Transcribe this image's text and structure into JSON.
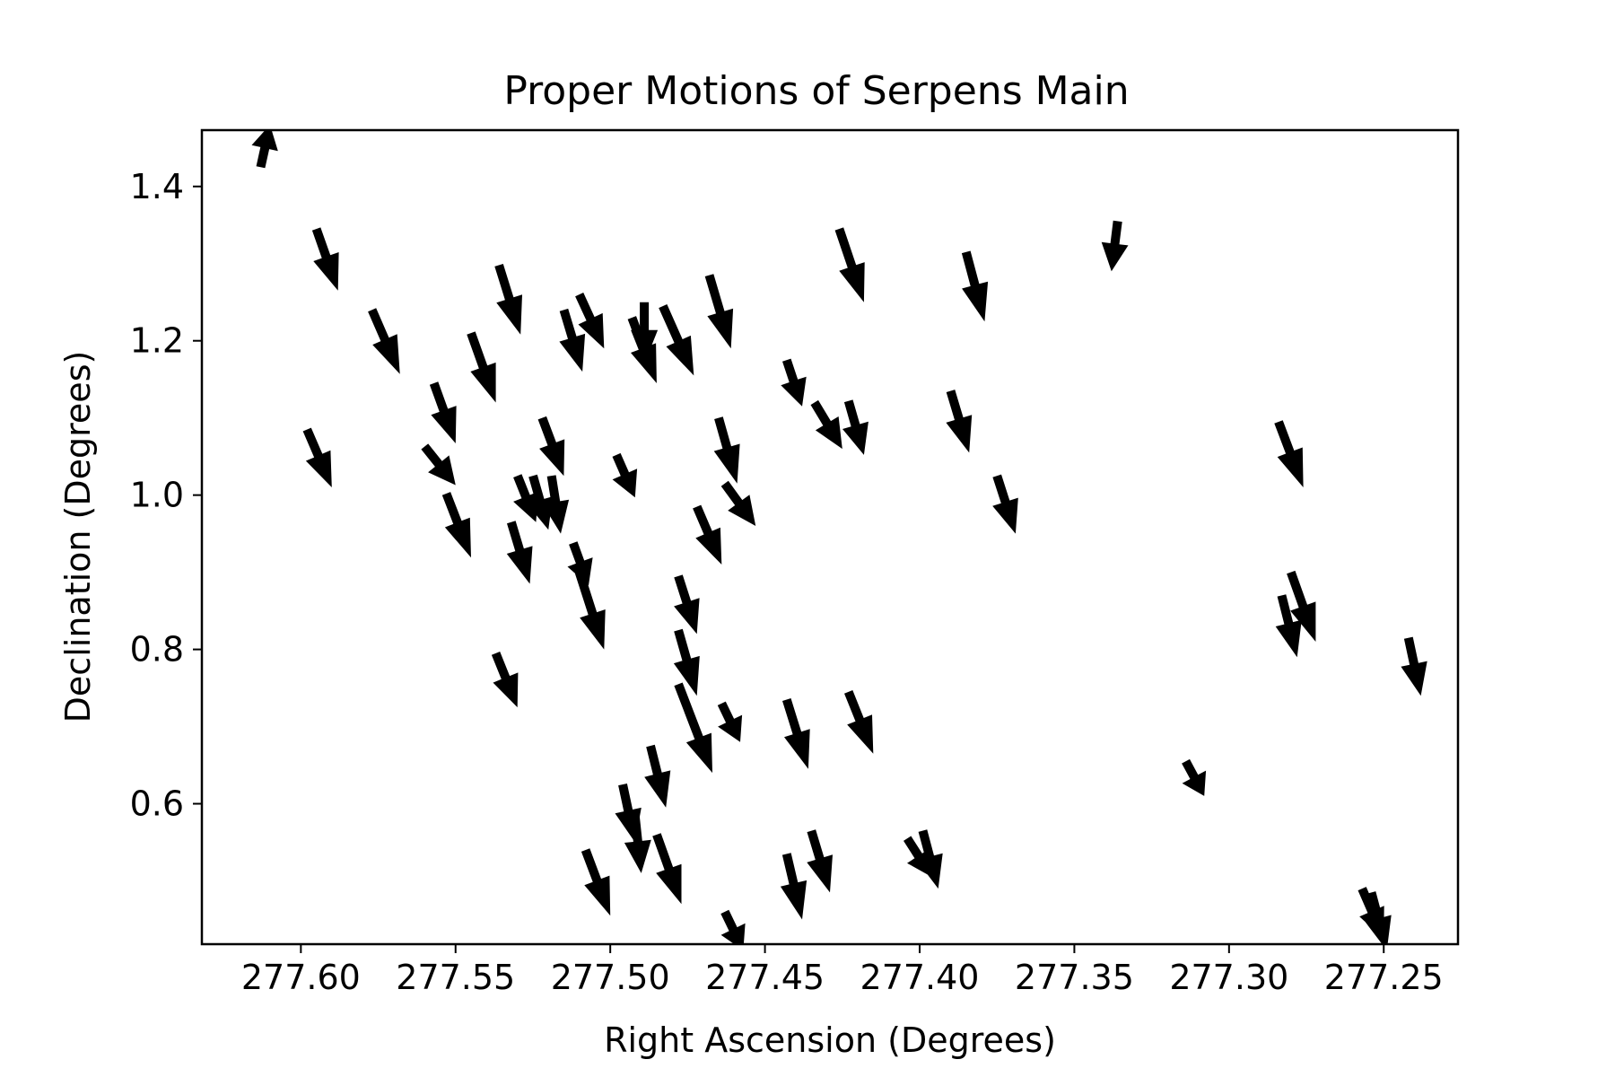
{
  "chart_data": {
    "type": "quiver",
    "title": "Proper Motions of Serpens Main",
    "xlabel": "Right Ascension (Degrees)",
    "ylabel": "Declination (Degrees)",
    "xlim": [
      277.632,
      277.226
    ],
    "ylim": [
      0.418,
      1.473
    ],
    "x_inverted": true,
    "xticks": [
      277.6,
      277.55,
      277.5,
      277.45,
      277.4,
      277.35,
      277.3,
      277.25
    ],
    "xtick_labels": [
      "277.60",
      "277.55",
      "277.50",
      "277.45",
      "277.40",
      "277.35",
      "277.30",
      "277.25"
    ],
    "yticks": [
      0.6,
      0.8,
      1.0,
      1.2,
      1.4
    ],
    "ytick_labels": [
      "0.6",
      "0.8",
      "1.0",
      "1.2",
      "1.4"
    ],
    "arrow_color": "#000000",
    "grid": false,
    "vectors": [
      {
        "x": 277.613,
        "y": 1.425,
        "dx": -0.003,
        "dy": 0.055
      },
      {
        "x": 277.595,
        "y": 1.345,
        "dx": -0.007,
        "dy": -0.08
      },
      {
        "x": 277.577,
        "y": 1.24,
        "dx": -0.009,
        "dy": -0.083
      },
      {
        "x": 277.598,
        "y": 1.085,
        "dx": -0.008,
        "dy": -0.075
      },
      {
        "x": 277.545,
        "y": 1.21,
        "dx": -0.008,
        "dy": -0.09
      },
      {
        "x": 277.536,
        "y": 1.298,
        "dx": -0.007,
        "dy": -0.09
      },
      {
        "x": 277.557,
        "y": 1.145,
        "dx": -0.007,
        "dy": -0.078
      },
      {
        "x": 277.56,
        "y": 1.063,
        "dx": -0.01,
        "dy": -0.05
      },
      {
        "x": 277.553,
        "y": 1.002,
        "dx": -0.008,
        "dy": -0.083
      },
      {
        "x": 277.53,
        "y": 1.025,
        "dx": -0.006,
        "dy": -0.06
      },
      {
        "x": 277.532,
        "y": 0.965,
        "dx": -0.006,
        "dy": -0.08
      },
      {
        "x": 277.525,
        "y": 1.025,
        "dx": -0.005,
        "dy": -0.07
      },
      {
        "x": 277.522,
        "y": 1.1,
        "dx": -0.007,
        "dy": -0.075
      },
      {
        "x": 277.519,
        "y": 1.025,
        "dx": -0.003,
        "dy": -0.075
      },
      {
        "x": 277.515,
        "y": 1.24,
        "dx": -0.006,
        "dy": -0.08
      },
      {
        "x": 277.51,
        "y": 1.26,
        "dx": -0.008,
        "dy": -0.07
      },
      {
        "x": 277.512,
        "y": 0.938,
        "dx": -0.005,
        "dy": -0.055
      },
      {
        "x": 277.51,
        "y": 0.9,
        "dx": -0.008,
        "dy": -0.1
      },
      {
        "x": 277.498,
        "y": 1.052,
        "dx": -0.006,
        "dy": -0.055
      },
      {
        "x": 277.493,
        "y": 1.23,
        "dx": -0.008,
        "dy": -0.085
      },
      {
        "x": 277.489,
        "y": 1.25,
        "dx": 0.0,
        "dy": -0.08
      },
      {
        "x": 277.483,
        "y": 1.245,
        "dx": -0.01,
        "dy": -0.09
      },
      {
        "x": 277.468,
        "y": 1.285,
        "dx": -0.007,
        "dy": -0.095
      },
      {
        "x": 277.465,
        "y": 1.1,
        "dx": -0.006,
        "dy": -0.085
      },
      {
        "x": 277.463,
        "y": 1.015,
        "dx": -0.01,
        "dy": -0.055
      },
      {
        "x": 277.472,
        "y": 0.985,
        "dx": -0.008,
        "dy": -0.075
      },
      {
        "x": 277.478,
        "y": 0.895,
        "dx": -0.006,
        "dy": -0.075
      },
      {
        "x": 277.478,
        "y": 0.825,
        "dx": -0.006,
        "dy": -0.085
      },
      {
        "x": 277.478,
        "y": 0.755,
        "dx": -0.011,
        "dy": -0.115
      },
      {
        "x": 277.464,
        "y": 0.73,
        "dx": -0.006,
        "dy": -0.05
      },
      {
        "x": 277.487,
        "y": 0.675,
        "dx": -0.005,
        "dy": -0.08
      },
      {
        "x": 277.496,
        "y": 0.625,
        "dx": -0.004,
        "dy": -0.075
      },
      {
        "x": 277.492,
        "y": 0.585,
        "dx": -0.002,
        "dy": -0.075
      },
      {
        "x": 277.485,
        "y": 0.56,
        "dx": -0.008,
        "dy": -0.09
      },
      {
        "x": 277.508,
        "y": 0.54,
        "dx": -0.008,
        "dy": -0.085
      },
      {
        "x": 277.463,
        "y": 0.46,
        "dx": -0.006,
        "dy": -0.05
      },
      {
        "x": 277.537,
        "y": 0.795,
        "dx": -0.007,
        "dy": -0.07
      },
      {
        "x": 277.443,
        "y": 1.175,
        "dx": -0.005,
        "dy": -0.06
      },
      {
        "x": 277.434,
        "y": 1.12,
        "dx": -0.009,
        "dy": -0.06
      },
      {
        "x": 277.423,
        "y": 1.122,
        "dx": -0.005,
        "dy": -0.07
      },
      {
        "x": 277.426,
        "y": 1.345,
        "dx": -0.008,
        "dy": -0.095
      },
      {
        "x": 277.385,
        "y": 1.315,
        "dx": -0.006,
        "dy": -0.09
      },
      {
        "x": 277.39,
        "y": 1.135,
        "dx": -0.006,
        "dy": -0.08
      },
      {
        "x": 277.375,
        "y": 1.025,
        "dx": -0.006,
        "dy": -0.075
      },
      {
        "x": 277.336,
        "y": 1.355,
        "dx": 0.002,
        "dy": -0.065
      },
      {
        "x": 277.284,
        "y": 1.095,
        "dx": -0.008,
        "dy": -0.085
      },
      {
        "x": 277.28,
        "y": 0.9,
        "dx": -0.008,
        "dy": -0.09
      },
      {
        "x": 277.283,
        "y": 0.87,
        "dx": -0.005,
        "dy": -0.08
      },
      {
        "x": 277.242,
        "y": 0.815,
        "dx": -0.004,
        "dy": -0.075
      },
      {
        "x": 277.443,
        "y": 0.735,
        "dx": -0.007,
        "dy": -0.09
      },
      {
        "x": 277.423,
        "y": 0.745,
        "dx": -0.008,
        "dy": -0.08
      },
      {
        "x": 277.435,
        "y": 0.565,
        "dx": -0.006,
        "dy": -0.08
      },
      {
        "x": 277.443,
        "y": 0.535,
        "dx": -0.005,
        "dy": -0.085
      },
      {
        "x": 277.399,
        "y": 0.565,
        "dx": -0.005,
        "dy": -0.075
      },
      {
        "x": 277.404,
        "y": 0.555,
        "dx": -0.008,
        "dy": -0.05
      },
      {
        "x": 277.314,
        "y": 0.655,
        "dx": -0.006,
        "dy": -0.045
      },
      {
        "x": 277.257,
        "y": 0.49,
        "dx": -0.007,
        "dy": -0.065
      },
      {
        "x": 277.254,
        "y": 0.485,
        "dx": -0.005,
        "dy": -0.075
      }
    ]
  }
}
